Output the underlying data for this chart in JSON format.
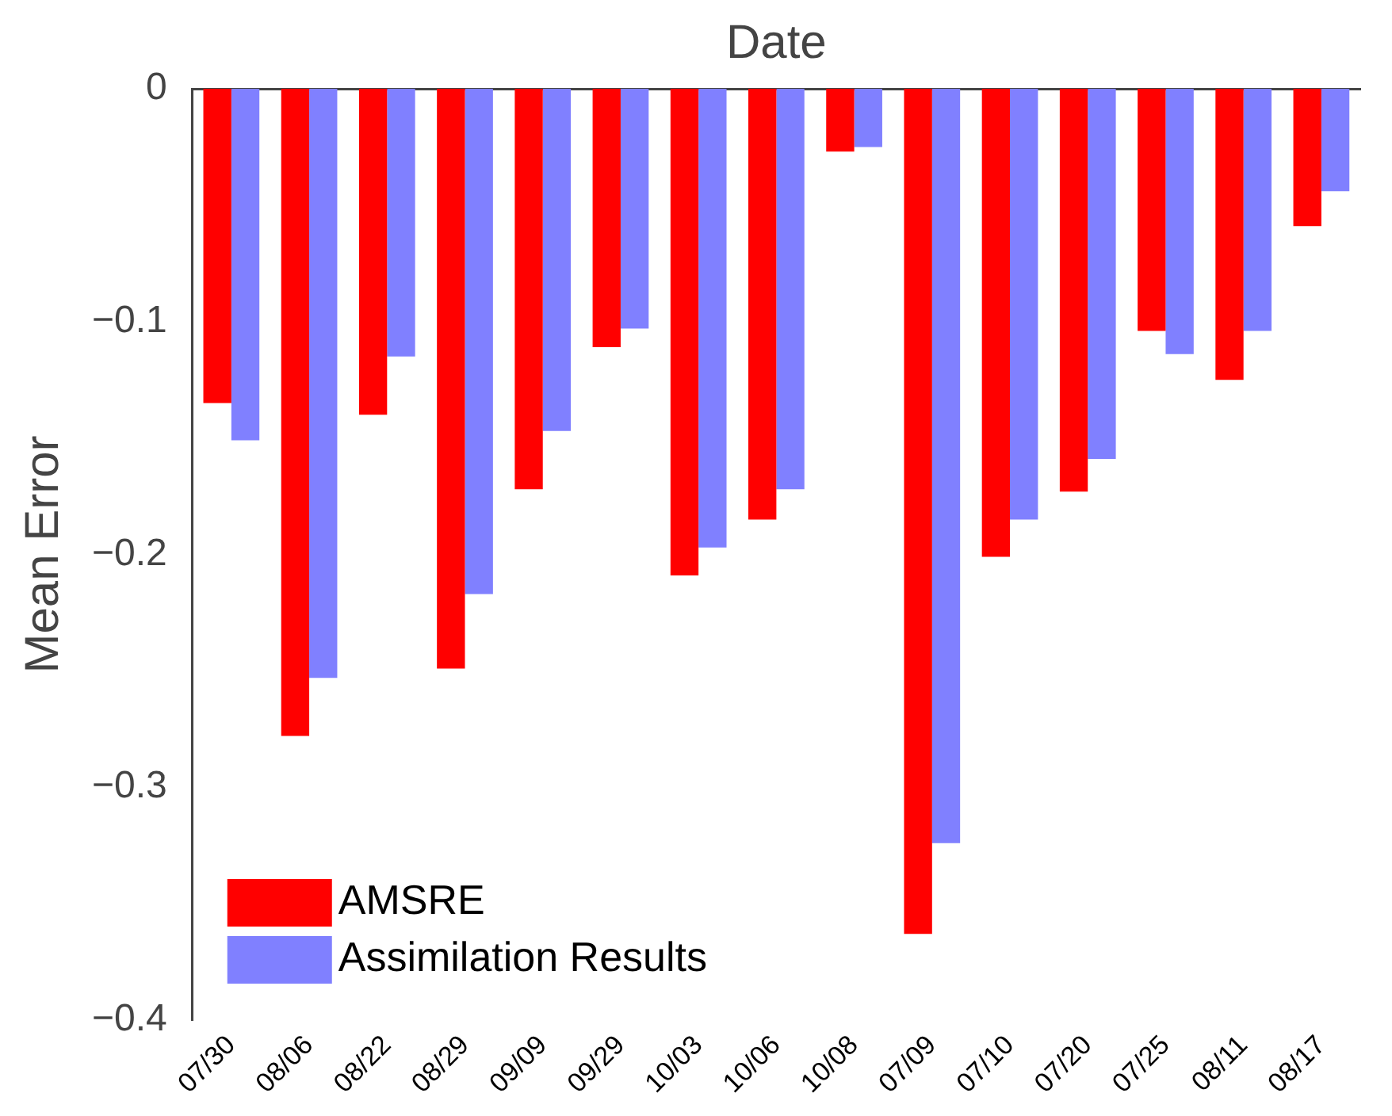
{
  "chart_data": {
    "type": "bar",
    "xlabel": "Date",
    "ylabel": "Mean Error",
    "categories": [
      "07/30",
      "08/06",
      "08/22",
      "08/29",
      "09/09",
      "09/29",
      "10/03",
      "10/06",
      "10/08",
      "07/09",
      "07/10",
      "07/20",
      "07/25",
      "08/11",
      "08/17"
    ],
    "series": [
      {
        "name": "AMSRE",
        "color": "#ff0000",
        "values": [
          -0.135,
          -0.278,
          -0.14,
          -0.249,
          -0.172,
          -0.111,
          -0.209,
          -0.185,
          -0.027,
          -0.363,
          -0.201,
          -0.173,
          -0.104,
          -0.125,
          -0.059
        ]
      },
      {
        "name": "Assimilation Results",
        "color": "#8080ff",
        "values": [
          -0.151,
          -0.253,
          -0.115,
          -0.217,
          -0.147,
          -0.103,
          -0.197,
          -0.172,
          -0.025,
          -0.324,
          -0.185,
          -0.159,
          -0.114,
          -0.104,
          -0.044
        ]
      }
    ],
    "ylim": [
      -0.4,
      0
    ],
    "yticks": [
      0,
      -0.1,
      -0.2,
      -0.3,
      -0.4
    ],
    "grid": false,
    "legend": "bottom left"
  }
}
